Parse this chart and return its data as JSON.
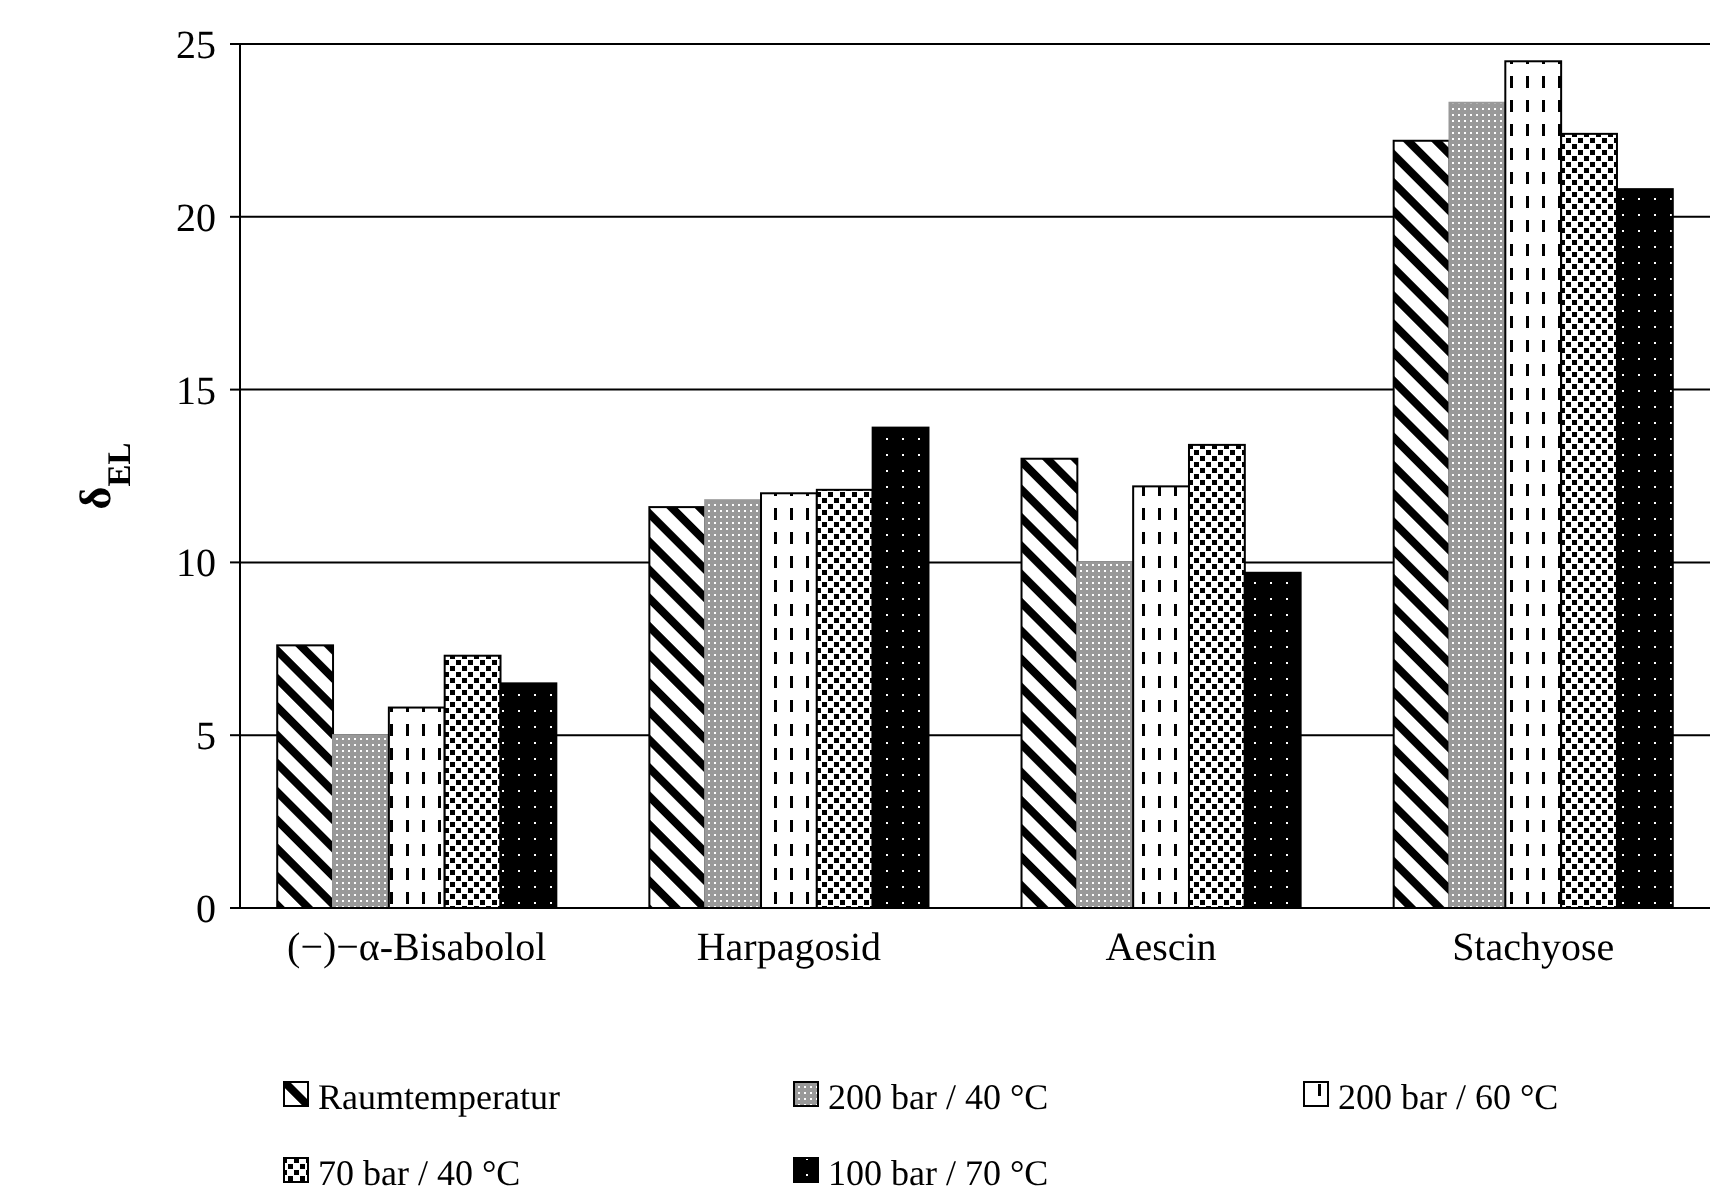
{
  "chart_data": {
    "type": "bar",
    "ylabel": "δ$_{EL}$",
    "categories": [
      "(−)−α-Bisabolol",
      "Harpagosid",
      "Aescin",
      "Stachyose"
    ],
    "series": [
      {
        "name": "Raumtemperatur",
        "color": "#000000",
        "values": [
          7.6,
          11.6,
          13.0,
          22.2
        ]
      },
      {
        "name": "200 bar / 40 °C",
        "color": "#999999",
        "values": [
          5.0,
          11.8,
          10.0,
          23.3
        ]
      },
      {
        "name": "200 bar / 60 °C",
        "color": "#000000",
        "values": [
          5.8,
          12.0,
          12.2,
          24.5
        ]
      },
      {
        "name": "70 bar / 40 °C",
        "color": "#000000",
        "values": [
          7.3,
          12.1,
          13.4,
          22.4
        ]
      },
      {
        "name": "100 bar / 70 °C",
        "color": "#000000",
        "values": [
          6.5,
          13.9,
          9.7,
          20.8
        ]
      }
    ],
    "ylim": [
      0,
      25
    ],
    "yticks": [
      0,
      5,
      10,
      15,
      20,
      25
    ],
    "grid": "y",
    "legend": "bottom"
  }
}
